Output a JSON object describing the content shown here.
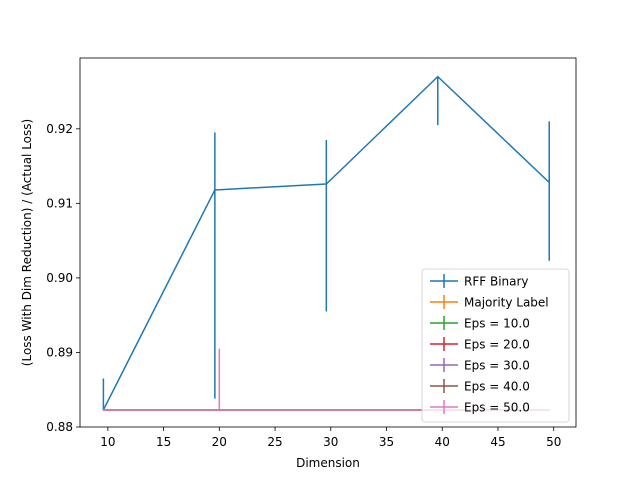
{
  "chart_data": {
    "type": "line",
    "title": "",
    "xlabel": "Dimension",
    "ylabel": "(Loss With Dim Reduction) / (Actual Loss)",
    "xlim": [
      7.5,
      52.0
    ],
    "ylim": [
      0.88,
      0.9295
    ],
    "xticks": [
      10,
      15,
      20,
      25,
      30,
      35,
      40,
      45,
      50
    ],
    "yticks": [
      0.88,
      0.89,
      0.9,
      0.91,
      0.92
    ],
    "ytick_labels": [
      "0.88",
      "0.89",
      "0.90",
      "0.91",
      "0.92"
    ],
    "grid": false,
    "legend_position": "lower-right",
    "series": [
      {
        "name": "RFF Binary",
        "color": "#1f77b4",
        "x": [
          9.6,
          19.6,
          29.6,
          39.6,
          49.6
        ],
        "y": [
          0.8823,
          0.9118,
          0.9126,
          0.927,
          0.9128
        ],
        "yerr_low": [
          0.8823,
          0.8838,
          0.8955,
          0.9205,
          0.9023
        ],
        "yerr_high": [
          0.8865,
          0.9195,
          0.9185,
          0.927,
          0.921
        ]
      },
      {
        "name": "Majority Label",
        "color": "#ff7f0e",
        "x": [
          9.6,
          19.6,
          29.6,
          39.6,
          49.6
        ],
        "y": [
          0.8823,
          0.8823,
          0.8823,
          0.8823,
          0.8823
        ]
      },
      {
        "name": "Eps = 10.0",
        "color": "#2ca02c",
        "x": [
          9.6,
          20.0,
          29.6,
          39.6,
          49.6
        ],
        "y": [
          0.8823,
          0.8823,
          0.8823,
          0.8823,
          0.8823
        ]
      },
      {
        "name": "Eps = 20.0",
        "color": "#d62728",
        "x": [
          9.6,
          20.0,
          29.6,
          39.6,
          49.6
        ],
        "y": [
          0.8823,
          0.8823,
          0.8823,
          0.8823,
          0.8823
        ]
      },
      {
        "name": "Eps = 30.0",
        "color": "#9467bd",
        "x": [
          9.6,
          20.0,
          29.6,
          39.6,
          49.6
        ],
        "y": [
          0.8823,
          0.8823,
          0.8823,
          0.8823,
          0.8823
        ]
      },
      {
        "name": "Eps = 40.0",
        "color": "#8c564b",
        "x": [
          9.6,
          20.0,
          29.6,
          39.6,
          49.6
        ],
        "y": [
          0.8823,
          0.8823,
          0.8823,
          0.8823,
          0.8823
        ]
      },
      {
        "name": "Eps = 50.0",
        "color": "#e377c2",
        "x": [
          9.6,
          20.0,
          29.6,
          39.6,
          49.6
        ],
        "y": [
          0.8823,
          0.8823,
          0.8823,
          0.8823,
          0.8823
        ],
        "yerr_low": [
          0.8823,
          0.8823,
          0.8823,
          0.8823,
          0.8823
        ],
        "yerr_high": [
          0.8823,
          0.8905,
          0.8823,
          0.8823,
          0.8823
        ]
      }
    ]
  }
}
